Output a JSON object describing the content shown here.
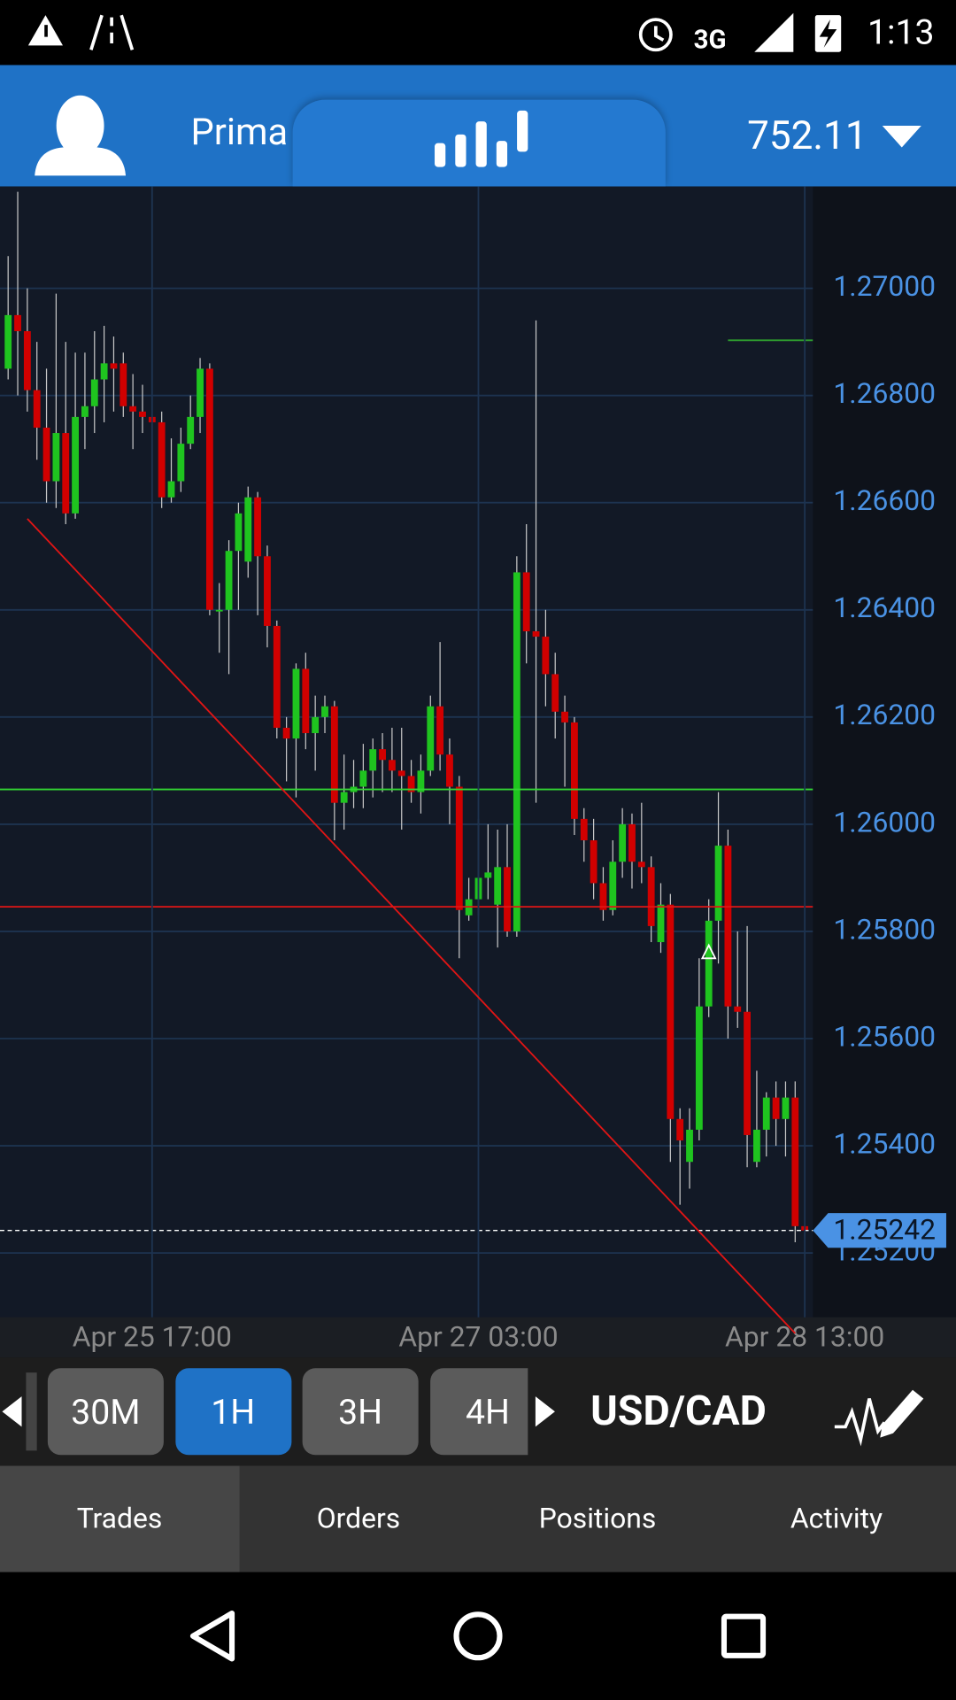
{
  "status_bar": {
    "network": "3G",
    "time": "1:13"
  },
  "header": {
    "account": "Prima",
    "balance": "752.11"
  },
  "toolbar": {
    "timeframes": [
      "30M",
      "1H",
      "3H",
      "4H"
    ],
    "selected": 1,
    "symbol": "USD/CAD"
  },
  "tabs": {
    "items": [
      "Trades",
      "Orders",
      "Positions",
      "Activity"
    ],
    "selected": 0
  },
  "chart_data": {
    "type": "candlestick",
    "categories": [
      null,
      null,
      null,
      null,
      null,
      null,
      null,
      null,
      null,
      null,
      null,
      null,
      null,
      null,
      null,
      "Apr 25 17:00",
      null,
      null,
      null,
      null,
      null,
      null,
      null,
      null,
      null,
      null,
      null,
      null,
      null,
      null,
      null,
      null,
      null,
      null,
      null,
      null,
      null,
      null,
      null,
      null,
      null,
      null,
      null,
      null,
      null,
      null,
      null,
      null,
      null,
      "Apr 27 03:00",
      null,
      null,
      null,
      null,
      null,
      null,
      null,
      null,
      null,
      null,
      null,
      null,
      null,
      null,
      null,
      null,
      null,
      null,
      null,
      null,
      null,
      null,
      null,
      null,
      null,
      null,
      null,
      null,
      null,
      null,
      null,
      null,
      null,
      "Apr 28 13:00"
    ],
    "open": [
      1.2685,
      1.2695,
      1.2692,
      1.2681,
      1.2674,
      1.2664,
      1.2673,
      1.2658,
      1.2676,
      1.2678,
      1.2683,
      1.2686,
      1.2686,
      1.2678,
      1.2677,
      1.2676,
      1.2675,
      1.2661,
      1.2664,
      1.2671,
      1.2676,
      1.2685,
      1.264,
      1.264,
      1.2651,
      1.2649,
      1.2661,
      1.265,
      1.2637,
      1.2618,
      1.2616,
      1.2629,
      1.2617,
      1.262,
      1.2622,
      1.2604,
      1.2606,
      1.2607,
      1.261,
      1.2614,
      1.2612,
      1.261,
      1.2609,
      1.2606,
      1.261,
      1.2622,
      1.2613,
      1.2607,
      1.2583,
      1.2586,
      1.259,
      1.2585,
      1.2592,
      1.258,
      1.2647,
      1.2636,
      1.2635,
      1.2628,
      1.2621,
      1.2619,
      1.2601,
      1.2597,
      1.2589,
      1.2584,
      1.2593,
      1.26,
      1.2593,
      1.2592,
      1.2578,
      1.2585,
      1.2545,
      1.2537,
      1.2543,
      1.2566,
      1.2582,
      1.2596,
      1.2566,
      1.2565,
      1.2537,
      1.2543,
      1.2549,
      1.2545,
      1.2549,
      1.2525
    ],
    "high": [
      1.2706,
      1.2718,
      1.27,
      1.269,
      1.2685,
      1.2699,
      1.269,
      1.2688,
      1.2688,
      1.2692,
      1.2693,
      1.2691,
      1.2688,
      1.2684,
      1.2682,
      1.2679,
      1.2677,
      1.2672,
      1.2674,
      1.268,
      1.2687,
      1.2686,
      1.2645,
      1.2653,
      1.266,
      1.2663,
      1.2662,
      1.2652,
      1.2638,
      1.262,
      1.263,
      1.2632,
      1.2624,
      1.2624,
      1.2623,
      1.2613,
      1.2612,
      1.2615,
      1.2616,
      1.2617,
      1.2618,
      1.2618,
      1.2612,
      1.2613,
      1.2624,
      1.2634,
      1.2616,
      1.2609,
      1.259,
      1.2601,
      1.26,
      1.2599,
      1.26,
      1.265,
      1.2656,
      1.2694,
      1.264,
      1.2632,
      1.2624,
      1.262,
      1.2603,
      1.2601,
      1.2592,
      1.2597,
      1.2603,
      1.2602,
      1.2604,
      1.2594,
      1.2589,
      1.2587,
      1.2547,
      1.2547,
      1.2575,
      1.2586,
      1.2606,
      1.2599,
      1.258,
      1.2581,
      1.2554,
      1.255,
      1.2552,
      1.2552,
      1.2552,
      1.2527
    ],
    "low": [
      1.2683,
      1.268,
      1.2677,
      1.2668,
      1.266,
      1.2659,
      1.2656,
      1.2657,
      1.267,
      1.2673,
      1.2675,
      1.2677,
      1.2676,
      1.267,
      1.2673,
      1.2674,
      1.2659,
      1.266,
      1.2662,
      1.267,
      1.2673,
      1.2639,
      1.2632,
      1.2628,
      1.264,
      1.2646,
      1.2639,
      1.2633,
      1.2616,
      1.2608,
      1.2605,
      1.2614,
      1.261,
      1.2617,
      1.2597,
      1.2599,
      1.2603,
      1.2603,
      1.2605,
      1.2606,
      1.2606,
      1.2599,
      1.2604,
      1.2602,
      1.2609,
      1.261,
      1.26,
      1.2575,
      1.2582,
      1.2583,
      1.2586,
      1.2577,
      1.2579,
      1.2579,
      1.263,
      1.2604,
      1.2622,
      1.2616,
      1.2607,
      1.2598,
      1.2593,
      1.2586,
      1.2582,
      1.2583,
      1.259,
      1.2588,
      1.2589,
      1.2578,
      1.2576,
      1.2537,
      1.2529,
      1.2532,
      1.2541,
      1.2564,
      1.2574,
      1.256,
      1.2562,
      1.2536,
      1.2536,
      1.2538,
      1.254,
      1.2538,
      1.2522,
      1.252
    ],
    "close": [
      1.2695,
      1.2692,
      1.2681,
      1.2674,
      1.2664,
      1.2673,
      1.2658,
      1.2676,
      1.2678,
      1.2683,
      1.2686,
      1.2685,
      1.2678,
      1.2677,
      1.2676,
      1.2675,
      1.2661,
      1.2664,
      1.2671,
      1.2676,
      1.2685,
      1.264,
      1.264,
      1.2651,
      1.2658,
      1.2661,
      1.265,
      1.2637,
      1.2618,
      1.2616,
      1.2629,
      1.2617,
      1.262,
      1.2622,
      1.2604,
      1.2606,
      1.2607,
      1.261,
      1.2614,
      1.2612,
      1.261,
      1.2609,
      1.2606,
      1.261,
      1.2622,
      1.2613,
      1.2607,
      1.2584,
      1.2586,
      1.259,
      1.2591,
      1.2592,
      1.258,
      1.2647,
      1.2636,
      1.2635,
      1.2628,
      1.2621,
      1.2619,
      1.2601,
      1.2597,
      1.2589,
      1.2584,
      1.2593,
      1.26,
      1.2593,
      1.2592,
      1.2581,
      1.2585,
      1.2545,
      1.2541,
      1.2543,
      1.2566,
      1.2582,
      1.2596,
      1.2566,
      1.2565,
      1.2542,
      1.2543,
      1.2549,
      1.2545,
      1.2549,
      1.2525,
      1.25242
    ],
    "up_color": "#1fc41f",
    "down_color": "#d10000",
    "ylim": [
      1.2508,
      1.2719
    ],
    "yticks": [
      {
        "value": 1.252,
        "label": "1.25200"
      },
      {
        "value": 1.254,
        "label": "1.25400"
      },
      {
        "value": 1.256,
        "label": "1.25600"
      },
      {
        "value": 1.258,
        "label": "1.25800"
      },
      {
        "value": 1.26,
        "label": "1.26000"
      },
      {
        "value": 1.262,
        "label": "1.26200"
      },
      {
        "value": 1.264,
        "label": "1.26400"
      },
      {
        "value": 1.266,
        "label": "1.26600"
      },
      {
        "value": 1.268,
        "label": "1.26800"
      },
      {
        "value": 1.27,
        "label": "1.27000"
      }
    ],
    "grid": true,
    "current_price": 1.25242,
    "levels": [
      {
        "value": 1.26065,
        "color": "#33d633"
      },
      {
        "value": 1.25846,
        "color": "#e01515"
      }
    ],
    "short_level": {
      "value": 1.26903,
      "from": 75,
      "color": "#2e9e2e"
    },
    "trendline": {
      "x": [
        2,
        82
      ],
      "y": [
        1.2657,
        1.2505
      ],
      "color": "#e01515"
    },
    "marker": {
      "index": 73,
      "value": 1.2576
    }
  }
}
